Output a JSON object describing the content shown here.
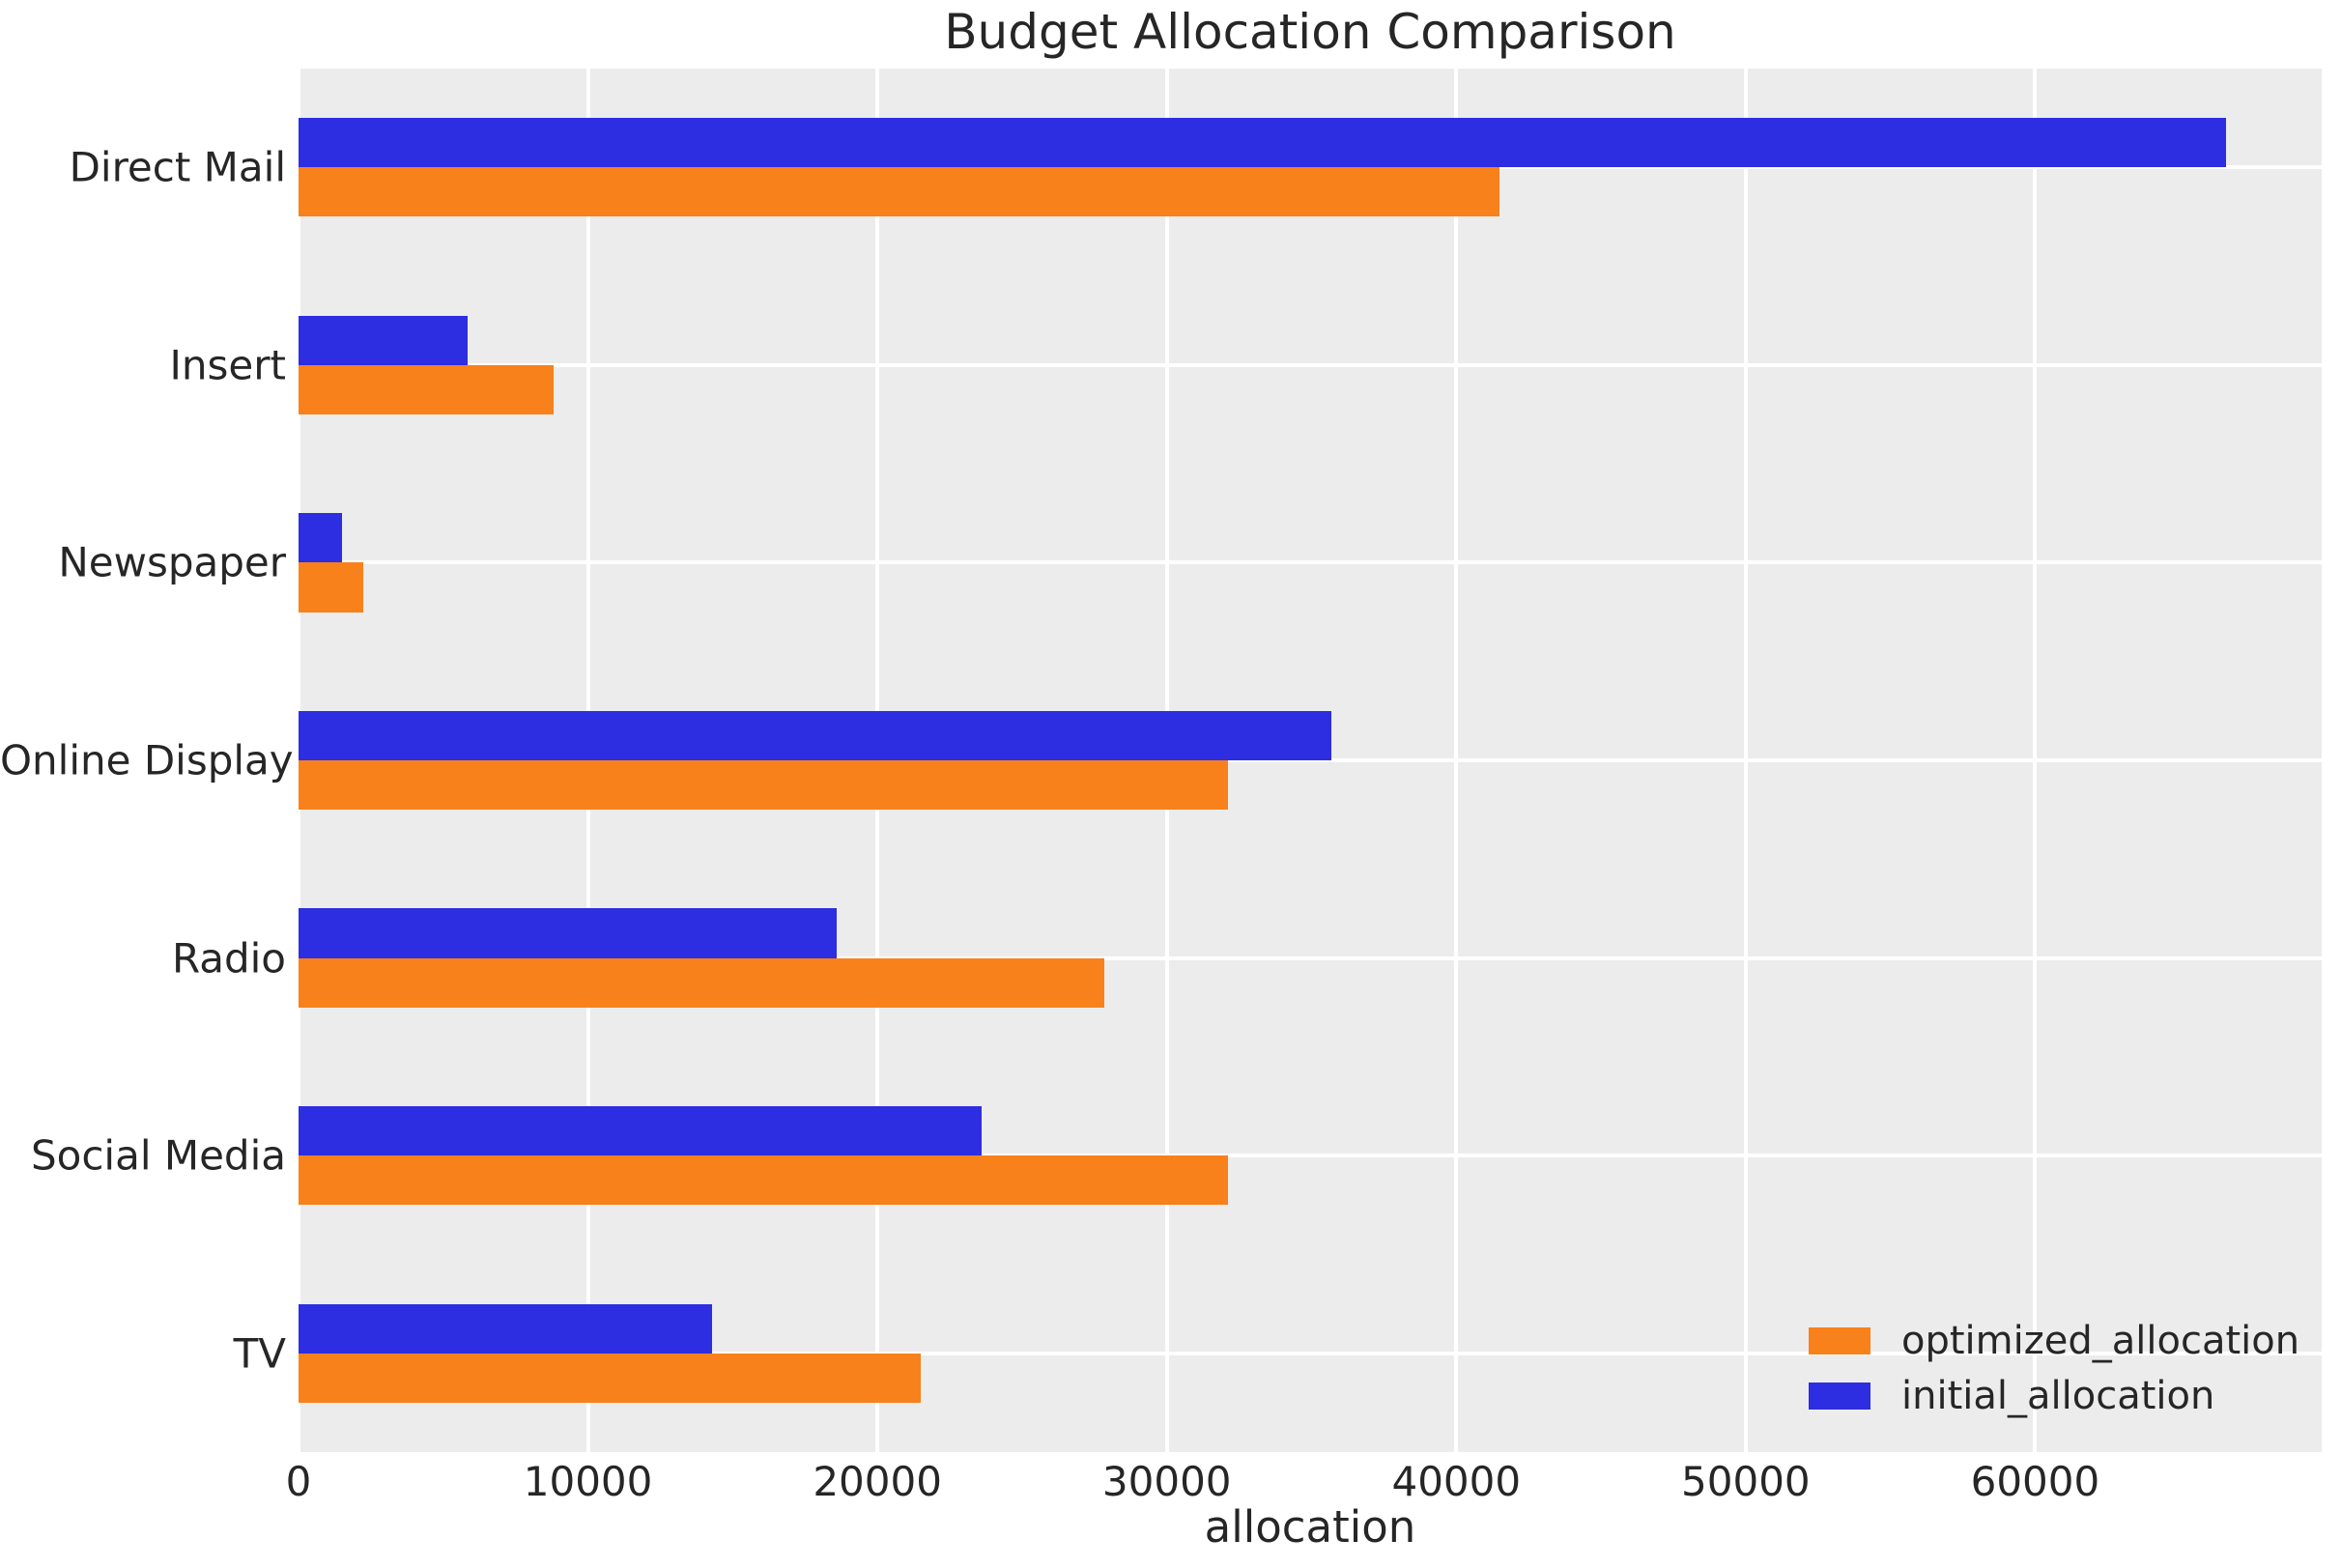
{
  "chart_data": {
    "type": "bar",
    "orientation": "horizontal",
    "title": "Budget Allocation Comparison",
    "xlabel": "allocation",
    "ylabel": "",
    "categories": [
      "Direct Mail",
      "Insert",
      "Newspaper",
      "Online Display",
      "Radio",
      "Social Media",
      "TV"
    ],
    "series": [
      {
        "name": "optimized_allocation",
        "color": "#f8811b",
        "values": [
          41500,
          8800,
          2250,
          32100,
          27850,
          32100,
          21500
        ]
      },
      {
        "name": "initial_allocation",
        "color": "#2d2de1",
        "values": [
          66600,
          5850,
          1500,
          35700,
          18600,
          23600,
          14300
        ]
      }
    ],
    "row_order_top_to_bottom": [
      "initial_allocation",
      "optimized_allocation"
    ],
    "x_ticks": [
      {
        "value": 0,
        "label": "0"
      },
      {
        "value": 10000,
        "label": "10000"
      },
      {
        "value": 20000,
        "label": "20000"
      },
      {
        "value": 30000,
        "label": "30000"
      },
      {
        "value": 40000,
        "label": "40000"
      },
      {
        "value": 50000,
        "label": "50000"
      },
      {
        "value": 60000,
        "label": "60000"
      }
    ],
    "xlim": [
      0,
      69900
    ],
    "grid": true,
    "legend": {
      "position": "lower right",
      "entries": [
        "optimized_allocation",
        "initial_allocation"
      ]
    },
    "colors": {
      "figure_background": "#ffffff",
      "plot_background": "#ececec",
      "gridline": "#ffffff",
      "text": "#262626"
    }
  }
}
